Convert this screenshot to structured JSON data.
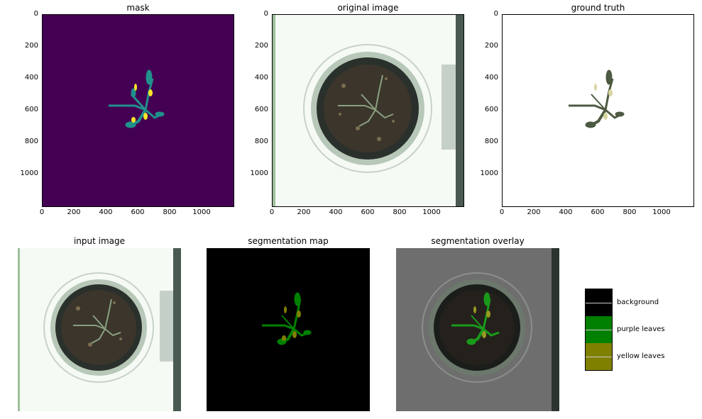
{
  "top_row": [
    {
      "title": "mask"
    },
    {
      "title": "original image"
    },
    {
      "title": "ground truth"
    }
  ],
  "bottom_row": [
    {
      "title": "input image"
    },
    {
      "title": "segmentation map"
    },
    {
      "title": "segmentation overlay"
    }
  ],
  "axes": {
    "x_ticks": [
      "0",
      "200",
      "400",
      "600",
      "800",
      "1000"
    ],
    "y_ticks": [
      "0",
      "200",
      "400",
      "600",
      "800",
      "1000"
    ]
  },
  "legend": {
    "items": [
      {
        "label": "background",
        "color": "#000000"
      },
      {
        "label": "purple leaves",
        "color": "#008000"
      },
      {
        "label": "yellow leaves",
        "color": "#808000"
      }
    ]
  },
  "colors": {
    "mask_background": "#440154",
    "mask_teal": "#21918c",
    "mask_yellow": "#fde725",
    "overlay_gray": "#6e6e6e"
  }
}
